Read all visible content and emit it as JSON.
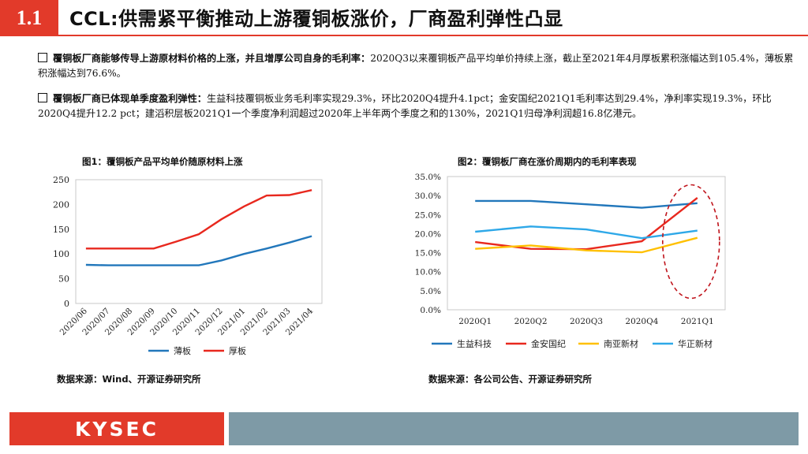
{
  "header": {
    "section_number": "1.1",
    "title": "CCL:供需紧平衡推动上游覆铜板涨价，厂商盈利弹性凸显"
  },
  "bullets": [
    {
      "lead": "覆铜板厂商能够传导上游原材料价格的上涨，并且增厚公司自身的毛利率：",
      "body": "2020Q3以来覆铜板产品平均单价持续上涨，截止至2021年4月厚板累积涨幅达到105.4%，薄板累积涨幅达到76.6%。"
    },
    {
      "lead": "覆铜板厂商已体现单季度盈利弹性：",
      "body": "生益科技覆铜板业务毛利率实现29.3%，环比2020Q4提升4.1pct；金安国纪2021Q1毛利率达到29.4%，净利率实现19.3%，环比2020Q4提升12.2 pct；建滔积层板2021Q1一个季度净利润超过2020年上半年两个季度之和的130%，2021Q1归母净利润超16.8亿港元。"
    }
  ],
  "figure1": {
    "title": "图1：覆铜板产品平均单价随原材料上涨",
    "source": "数据来源：Wind、开源证券研究所"
  },
  "figure2": {
    "title": "图2：覆铜板厂商在涨价周期内的毛利率表现",
    "source": "数据来源：各公司公告、开源证券研究所"
  },
  "footer": {
    "logo": "KYSEC"
  },
  "colors": {
    "red": "#e8281e",
    "blue": "#2277bb",
    "yellow": "#ffc000",
    "lightblue": "#2ea8e8",
    "footer_gray": "#7e9aa6"
  },
  "chart_data": [
    {
      "type": "line",
      "categories": [
        "2020/06",
        "2020/07",
        "2020/08",
        "2020/09",
        "2020/10",
        "2020/11",
        "2020/12",
        "2021/01",
        "2021/02",
        "2021/03",
        "2021/04"
      ],
      "series": [
        {
          "name": "薄板",
          "color": "#2277bb",
          "values": [
            78,
            77,
            77,
            77,
            77,
            77,
            87,
            100,
            111,
            123,
            136
          ]
        },
        {
          "name": "厚板",
          "color": "#e8281e",
          "values": [
            111,
            111,
            111,
            111,
            125,
            140,
            170,
            196,
            218,
            219,
            229
          ]
        }
      ],
      "ylim": [
        0,
        250
      ],
      "yticks": [
        "0",
        "50",
        "100",
        "150",
        "200",
        "250"
      ]
    },
    {
      "type": "line",
      "categories": [
        "2020Q1",
        "2020Q2",
        "2020Q3",
        "2020Q4",
        "2021Q1"
      ],
      "series": [
        {
          "name": "生益科技",
          "color": "#2277bb",
          "values": [
            28.6,
            28.6,
            27.7,
            26.8,
            28.0
          ]
        },
        {
          "name": "金安国纪",
          "color": "#e8281e",
          "values": [
            17.8,
            16.0,
            15.9,
            18.0,
            29.4
          ]
        },
        {
          "name": "南亚新材",
          "color": "#ffc000",
          "values": [
            16.0,
            16.9,
            15.6,
            15.1,
            18.9
          ]
        },
        {
          "name": "华正新材",
          "color": "#2ea8e8",
          "values": [
            20.5,
            21.9,
            21.1,
            18.8,
            20.8
          ]
        }
      ],
      "ylim": [
        0,
        35
      ],
      "yticks": [
        "0.0%",
        "5.0%",
        "10.0%",
        "15.0%",
        "20.0%",
        "25.0%",
        "30.0%",
        "35.0%"
      ]
    }
  ]
}
